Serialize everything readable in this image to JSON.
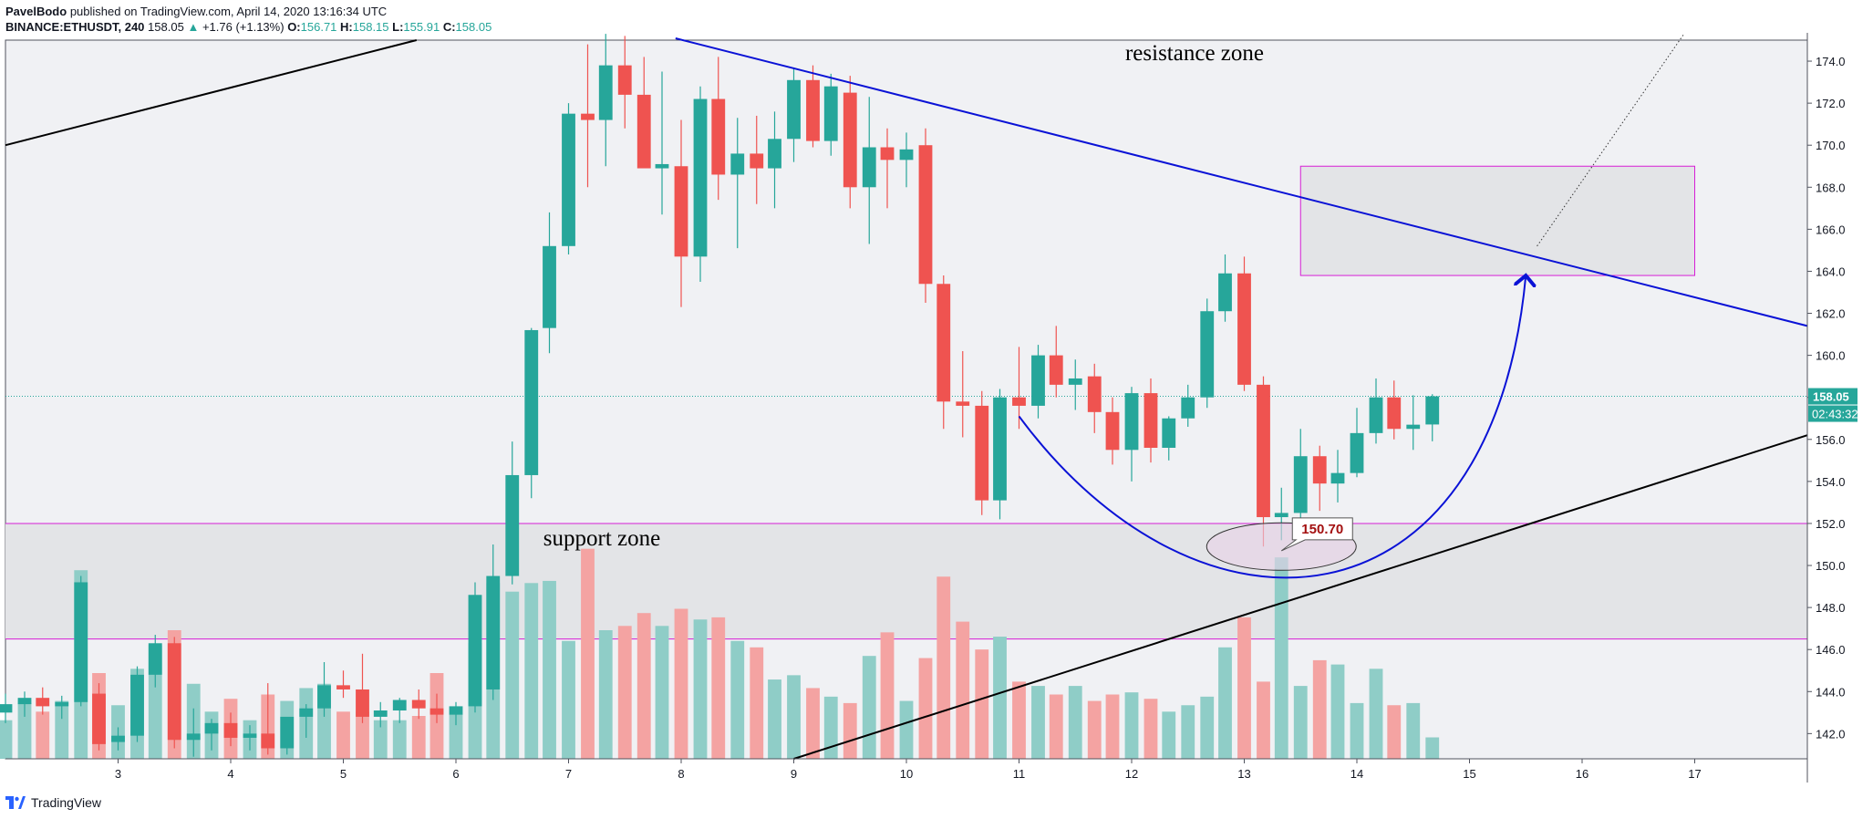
{
  "header": {
    "author": "PavelBodo",
    "published": "published on TradingView.com, April 14, 2020 13:16:34 UTC",
    "symbol": "BINANCE:ETHUSDT, 240",
    "last": "158.05",
    "arrow": "▲",
    "change": "+1.76 (+1.13%)",
    "o_label": "O:",
    "o_value": "156.71",
    "h_label": "H:",
    "h_value": "158.15",
    "l_label": "L:",
    "l_value": "155.91",
    "c_label": "C:",
    "c_value": "158.05"
  },
  "footer": {
    "brand": "TradingView"
  },
  "colors": {
    "up": "#26a69a",
    "down": "#ef5350",
    "vol_up": "#8fcdc7",
    "vol_down": "#f4a3a2",
    "zone": "#e3e4e7",
    "zone_line": "#d61ed6",
    "trend_black": "#000000",
    "trend_blue": "#0a12d6",
    "bg": "#f0f1f4"
  },
  "chart_data": {
    "type": "candlestick",
    "price_axis": {
      "min": 140.8,
      "max": 175.0,
      "ticks": [
        142,
        144,
        146,
        148,
        150,
        152,
        154,
        156,
        158,
        160,
        162,
        164,
        166,
        168,
        170,
        172,
        174
      ]
    },
    "time_axis": {
      "labels": [
        "3",
        "4",
        "5",
        "6",
        "7",
        "8",
        "9",
        "10",
        "11",
        "12",
        "13",
        "14",
        "15",
        "16",
        "17"
      ],
      "label_days": [
        3,
        4,
        5,
        6,
        7,
        8,
        9,
        10,
        11,
        12,
        13,
        14,
        15,
        16,
        17
      ],
      "start_day": 2.0,
      "end_day": 18.0
    },
    "last_price": {
      "value": 158.05,
      "label": "158.05",
      "countdown": "02:43:32"
    },
    "annotations": {
      "resistance_label": "resistance zone",
      "support_label": "support zone",
      "low_callout": "150.70",
      "low_value": 150.7,
      "support_zone": [
        146.5,
        152.0
      ],
      "target_box": {
        "price_top": 169.0,
        "price_bottom": 163.8,
        "day_start": 13.5,
        "day_end": 17.0
      }
    },
    "candles": [
      {
        "d": 2.0,
        "o": 143.0,
        "h": 143.9,
        "l": 142.5,
        "c": 143.4,
        "v": 0.18
      },
      {
        "d": 2.17,
        "o": 143.4,
        "h": 144.0,
        "l": 142.8,
        "c": 143.7,
        "v": 0.26
      },
      {
        "d": 2.33,
        "o": 143.7,
        "h": 144.2,
        "l": 142.9,
        "c": 143.3,
        "v": 0.22
      },
      {
        "d": 2.5,
        "o": 143.3,
        "h": 143.8,
        "l": 142.7,
        "c": 143.5,
        "v": 0.27
      },
      {
        "d": 2.67,
        "o": 143.5,
        "h": 149.5,
        "l": 143.3,
        "c": 149.2,
        "v": 0.88
      },
      {
        "d": 2.83,
        "o": 143.9,
        "h": 144.4,
        "l": 141.2,
        "c": 141.5,
        "v": 0.4
      },
      {
        "d": 3.0,
        "o": 141.6,
        "h": 142.3,
        "l": 141.2,
        "c": 141.9,
        "v": 0.25
      },
      {
        "d": 3.17,
        "o": 141.9,
        "h": 145.2,
        "l": 141.6,
        "c": 144.8,
        "v": 0.42
      },
      {
        "d": 3.33,
        "o": 144.8,
        "h": 146.7,
        "l": 144.2,
        "c": 146.3,
        "v": 0.53
      },
      {
        "d": 3.5,
        "o": 146.3,
        "h": 146.6,
        "l": 141.3,
        "c": 141.7,
        "v": 0.6
      },
      {
        "d": 3.67,
        "o": 141.7,
        "h": 143.2,
        "l": 140.9,
        "c": 142.0,
        "v": 0.35
      },
      {
        "d": 3.83,
        "o": 142.0,
        "h": 142.7,
        "l": 141.2,
        "c": 142.5,
        "v": 0.22
      },
      {
        "d": 4.0,
        "o": 142.5,
        "h": 143.0,
        "l": 141.4,
        "c": 141.8,
        "v": 0.28
      },
      {
        "d": 4.17,
        "o": 141.8,
        "h": 142.4,
        "l": 141.2,
        "c": 142.0,
        "v": 0.18
      },
      {
        "d": 4.33,
        "o": 142.0,
        "h": 144.4,
        "l": 141.0,
        "c": 141.3,
        "v": 0.3
      },
      {
        "d": 4.5,
        "o": 141.3,
        "h": 142.6,
        "l": 141.0,
        "c": 142.8,
        "v": 0.27
      },
      {
        "d": 4.67,
        "o": 142.8,
        "h": 143.4,
        "l": 141.8,
        "c": 143.2,
        "v": 0.33
      },
      {
        "d": 4.83,
        "o": 143.2,
        "h": 145.4,
        "l": 142.8,
        "c": 144.3,
        "v": 0.35
      },
      {
        "d": 5.0,
        "o": 144.3,
        "h": 145.0,
        "l": 143.7,
        "c": 144.1,
        "v": 0.22
      },
      {
        "d": 5.17,
        "o": 144.1,
        "h": 145.8,
        "l": 142.5,
        "c": 142.8,
        "v": 0.22
      },
      {
        "d": 5.33,
        "o": 142.8,
        "h": 143.5,
        "l": 142.3,
        "c": 143.1,
        "v": 0.18
      },
      {
        "d": 5.5,
        "o": 143.1,
        "h": 143.7,
        "l": 142.5,
        "c": 143.6,
        "v": 0.18
      },
      {
        "d": 5.67,
        "o": 143.6,
        "h": 144.1,
        "l": 142.7,
        "c": 143.2,
        "v": 0.2
      },
      {
        "d": 5.83,
        "o": 143.2,
        "h": 143.9,
        "l": 142.5,
        "c": 142.9,
        "v": 0.4
      },
      {
        "d": 6.0,
        "o": 142.9,
        "h": 143.5,
        "l": 142.4,
        "c": 143.3,
        "v": 0.21
      },
      {
        "d": 6.17,
        "o": 143.3,
        "h": 149.2,
        "l": 143.0,
        "c": 148.6,
        "v": 0.54
      },
      {
        "d": 6.33,
        "o": 144.1,
        "h": 151.0,
        "l": 143.6,
        "c": 149.5,
        "v": 0.82
      },
      {
        "d": 6.5,
        "o": 149.5,
        "h": 155.9,
        "l": 149.1,
        "c": 154.3,
        "v": 0.78
      },
      {
        "d": 6.67,
        "o": 154.3,
        "h": 161.3,
        "l": 153.2,
        "c": 161.2,
        "v": 0.82
      },
      {
        "d": 6.83,
        "o": 161.3,
        "h": 166.8,
        "l": 160.1,
        "c": 165.2,
        "v": 0.83
      },
      {
        "d": 7.0,
        "o": 165.2,
        "h": 172.0,
        "l": 164.8,
        "c": 171.5,
        "v": 0.55
      },
      {
        "d": 7.17,
        "o": 171.5,
        "h": 174.8,
        "l": 168.0,
        "c": 171.2,
        "v": 0.98
      },
      {
        "d": 7.33,
        "o": 171.2,
        "h": 175.3,
        "l": 169.0,
        "c": 173.8,
        "v": 0.6
      },
      {
        "d": 7.5,
        "o": 173.8,
        "h": 175.2,
        "l": 170.8,
        "c": 172.4,
        "v": 0.62
      },
      {
        "d": 7.67,
        "o": 172.4,
        "h": 174.2,
        "l": 169.2,
        "c": 168.9,
        "v": 0.68
      },
      {
        "d": 7.83,
        "o": 168.9,
        "h": 173.5,
        "l": 166.7,
        "c": 169.1,
        "v": 0.62
      },
      {
        "d": 8.0,
        "o": 169.0,
        "h": 171.2,
        "l": 162.3,
        "c": 164.7,
        "v": 0.7
      },
      {
        "d": 8.17,
        "o": 164.7,
        "h": 172.8,
        "l": 163.5,
        "c": 172.2,
        "v": 0.65
      },
      {
        "d": 8.33,
        "o": 172.2,
        "h": 174.2,
        "l": 167.4,
        "c": 168.6,
        "v": 0.66
      },
      {
        "d": 8.5,
        "o": 168.6,
        "h": 171.3,
        "l": 165.1,
        "c": 169.6,
        "v": 0.55
      },
      {
        "d": 8.67,
        "o": 169.6,
        "h": 171.4,
        "l": 167.2,
        "c": 168.9,
        "v": 0.52
      },
      {
        "d": 8.83,
        "o": 168.9,
        "h": 171.6,
        "l": 167.0,
        "c": 170.3,
        "v": 0.37
      },
      {
        "d": 9.0,
        "o": 170.3,
        "h": 173.7,
        "l": 169.2,
        "c": 173.1,
        "v": 0.39
      },
      {
        "d": 9.17,
        "o": 173.1,
        "h": 173.8,
        "l": 169.9,
        "c": 170.2,
        "v": 0.33
      },
      {
        "d": 9.33,
        "o": 170.2,
        "h": 173.4,
        "l": 169.5,
        "c": 172.8,
        "v": 0.29
      },
      {
        "d": 9.5,
        "o": 172.5,
        "h": 173.3,
        "l": 167.0,
        "c": 168.0,
        "v": 0.26
      },
      {
        "d": 9.67,
        "o": 168.0,
        "h": 172.3,
        "l": 165.3,
        "c": 169.9,
        "v": 0.48
      },
      {
        "d": 9.83,
        "o": 169.9,
        "h": 170.8,
        "l": 167.0,
        "c": 169.3,
        "v": 0.59
      },
      {
        "d": 10.0,
        "o": 169.3,
        "h": 170.6,
        "l": 168.0,
        "c": 169.8,
        "v": 0.27
      },
      {
        "d": 10.17,
        "o": 170.0,
        "h": 170.8,
        "l": 162.5,
        "c": 163.4,
        "v": 0.47
      },
      {
        "d": 10.33,
        "o": 163.4,
        "h": 163.8,
        "l": 156.5,
        "c": 157.8,
        "v": 0.85
      },
      {
        "d": 10.5,
        "o": 157.8,
        "h": 160.2,
        "l": 156.1,
        "c": 157.6,
        "v": 0.64
      },
      {
        "d": 10.67,
        "o": 157.6,
        "h": 158.3,
        "l": 152.4,
        "c": 153.1,
        "v": 0.51
      },
      {
        "d": 10.83,
        "o": 153.1,
        "h": 158.4,
        "l": 152.2,
        "c": 158.0,
        "v": 0.57
      },
      {
        "d": 11.0,
        "o": 158.0,
        "h": 160.4,
        "l": 156.5,
        "c": 157.6,
        "v": 0.36
      },
      {
        "d": 11.17,
        "o": 157.6,
        "h": 160.5,
        "l": 157.0,
        "c": 160.0,
        "v": 0.34
      },
      {
        "d": 11.33,
        "o": 160.0,
        "h": 161.4,
        "l": 158.0,
        "c": 158.6,
        "v": 0.3
      },
      {
        "d": 11.5,
        "o": 158.6,
        "h": 159.8,
        "l": 157.4,
        "c": 158.9,
        "v": 0.34
      },
      {
        "d": 11.67,
        "o": 159.0,
        "h": 159.6,
        "l": 156.3,
        "c": 157.3,
        "v": 0.27
      },
      {
        "d": 11.83,
        "o": 157.3,
        "h": 158.0,
        "l": 154.8,
        "c": 155.5,
        "v": 0.3
      },
      {
        "d": 12.0,
        "o": 155.5,
        "h": 158.5,
        "l": 154.0,
        "c": 158.2,
        "v": 0.31
      },
      {
        "d": 12.17,
        "o": 158.2,
        "h": 158.9,
        "l": 154.9,
        "c": 155.6,
        "v": 0.28
      },
      {
        "d": 12.33,
        "o": 155.6,
        "h": 157.1,
        "l": 155.0,
        "c": 157.0,
        "v": 0.22
      },
      {
        "d": 12.5,
        "o": 157.0,
        "h": 158.6,
        "l": 156.6,
        "c": 158.0,
        "v": 0.25
      },
      {
        "d": 12.67,
        "o": 158.0,
        "h": 162.7,
        "l": 157.5,
        "c": 162.1,
        "v": 0.29
      },
      {
        "d": 12.83,
        "o": 162.1,
        "h": 164.8,
        "l": 161.6,
        "c": 163.9,
        "v": 0.52
      },
      {
        "d": 13.0,
        "o": 163.9,
        "h": 164.7,
        "l": 158.3,
        "c": 158.6,
        "v": 0.66
      },
      {
        "d": 13.17,
        "o": 158.6,
        "h": 159.0,
        "l": 150.9,
        "c": 152.3,
        "v": 0.36
      },
      {
        "d": 13.33,
        "o": 152.3,
        "h": 153.7,
        "l": 151.2,
        "c": 152.5,
        "v": 0.94
      },
      {
        "d": 13.5,
        "o": 152.5,
        "h": 156.5,
        "l": 151.5,
        "c": 155.2,
        "v": 0.34
      },
      {
        "d": 13.67,
        "o": 155.2,
        "h": 155.7,
        "l": 152.6,
        "c": 153.9,
        "v": 0.46
      },
      {
        "d": 13.83,
        "o": 153.9,
        "h": 155.5,
        "l": 153.0,
        "c": 154.4,
        "v": 0.44
      },
      {
        "d": 14.0,
        "o": 154.4,
        "h": 157.5,
        "l": 154.2,
        "c": 156.3,
        "v": 0.26
      },
      {
        "d": 14.17,
        "o": 156.3,
        "h": 158.9,
        "l": 155.8,
        "c": 158.0,
        "v": 0.42
      },
      {
        "d": 14.33,
        "o": 158.0,
        "h": 158.8,
        "l": 156.0,
        "c": 156.5,
        "v": 0.25
      },
      {
        "d": 14.5,
        "o": 156.5,
        "h": 158.1,
        "l": 155.5,
        "c": 156.7,
        "v": 0.26
      },
      {
        "d": 14.67,
        "o": 156.71,
        "h": 158.15,
        "l": 155.91,
        "c": 158.05,
        "v": 0.1
      }
    ]
  }
}
